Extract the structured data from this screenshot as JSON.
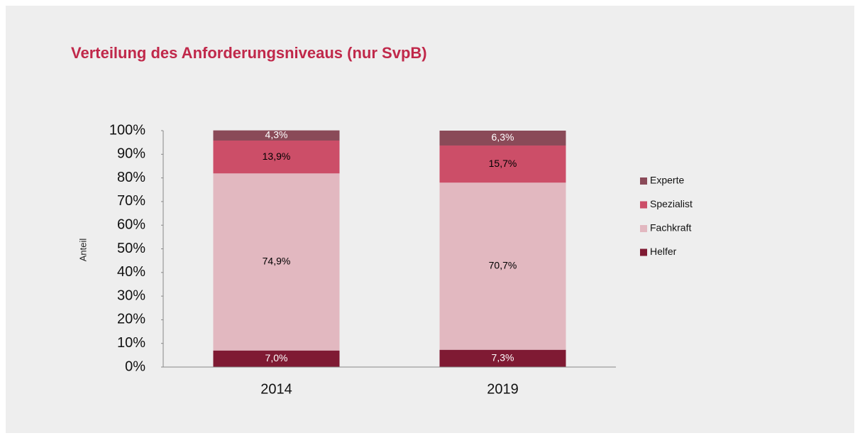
{
  "chart_data": {
    "type": "stacked_bar",
    "title": "Verteilung des Anforderungsniveaus (nur SvpB)",
    "y_label": "Anteil",
    "categories": [
      "2014",
      "2019"
    ],
    "series": [
      {
        "name": "Helfer",
        "color": "#7f1a33",
        "values": [
          7.0,
          7.3
        ],
        "value_labels": [
          "7,0%",
          "7,3%"
        ],
        "label_color": "#ffffff"
      },
      {
        "name": "Fachkraft",
        "color": "#e2b8c0",
        "values": [
          74.9,
          70.7
        ],
        "value_labels": [
          "74,9%",
          "70,7%"
        ],
        "label_color": "#000000"
      },
      {
        "name": "Spezialist",
        "color": "#cc4e68",
        "values": [
          13.9,
          15.7
        ],
        "value_labels": [
          "13,9%",
          "15,7%"
        ],
        "label_color": "#000000"
      },
      {
        "name": "Experte",
        "color": "#8a4a58",
        "values": [
          4.3,
          6.3
        ],
        "value_labels": [
          "4,3%",
          "6,3%"
        ],
        "label_color": "#ffffff"
      }
    ],
    "ylim": [
      0,
      100
    ],
    "yticks": [
      {
        "value": 0,
        "label": "0%"
      },
      {
        "value": 10,
        "label": "10%"
      },
      {
        "value": 20,
        "label": "20%"
      },
      {
        "value": 30,
        "label": "30%"
      },
      {
        "value": 40,
        "label": "40%"
      },
      {
        "value": 50,
        "label": "50%"
      },
      {
        "value": 60,
        "label": "60%"
      },
      {
        "value": 70,
        "label": "70%"
      },
      {
        "value": 80,
        "label": "80%"
      },
      {
        "value": 90,
        "label": "90%"
      },
      {
        "value": 100,
        "label": "100%"
      }
    ],
    "grid": false,
    "legend": "right"
  }
}
